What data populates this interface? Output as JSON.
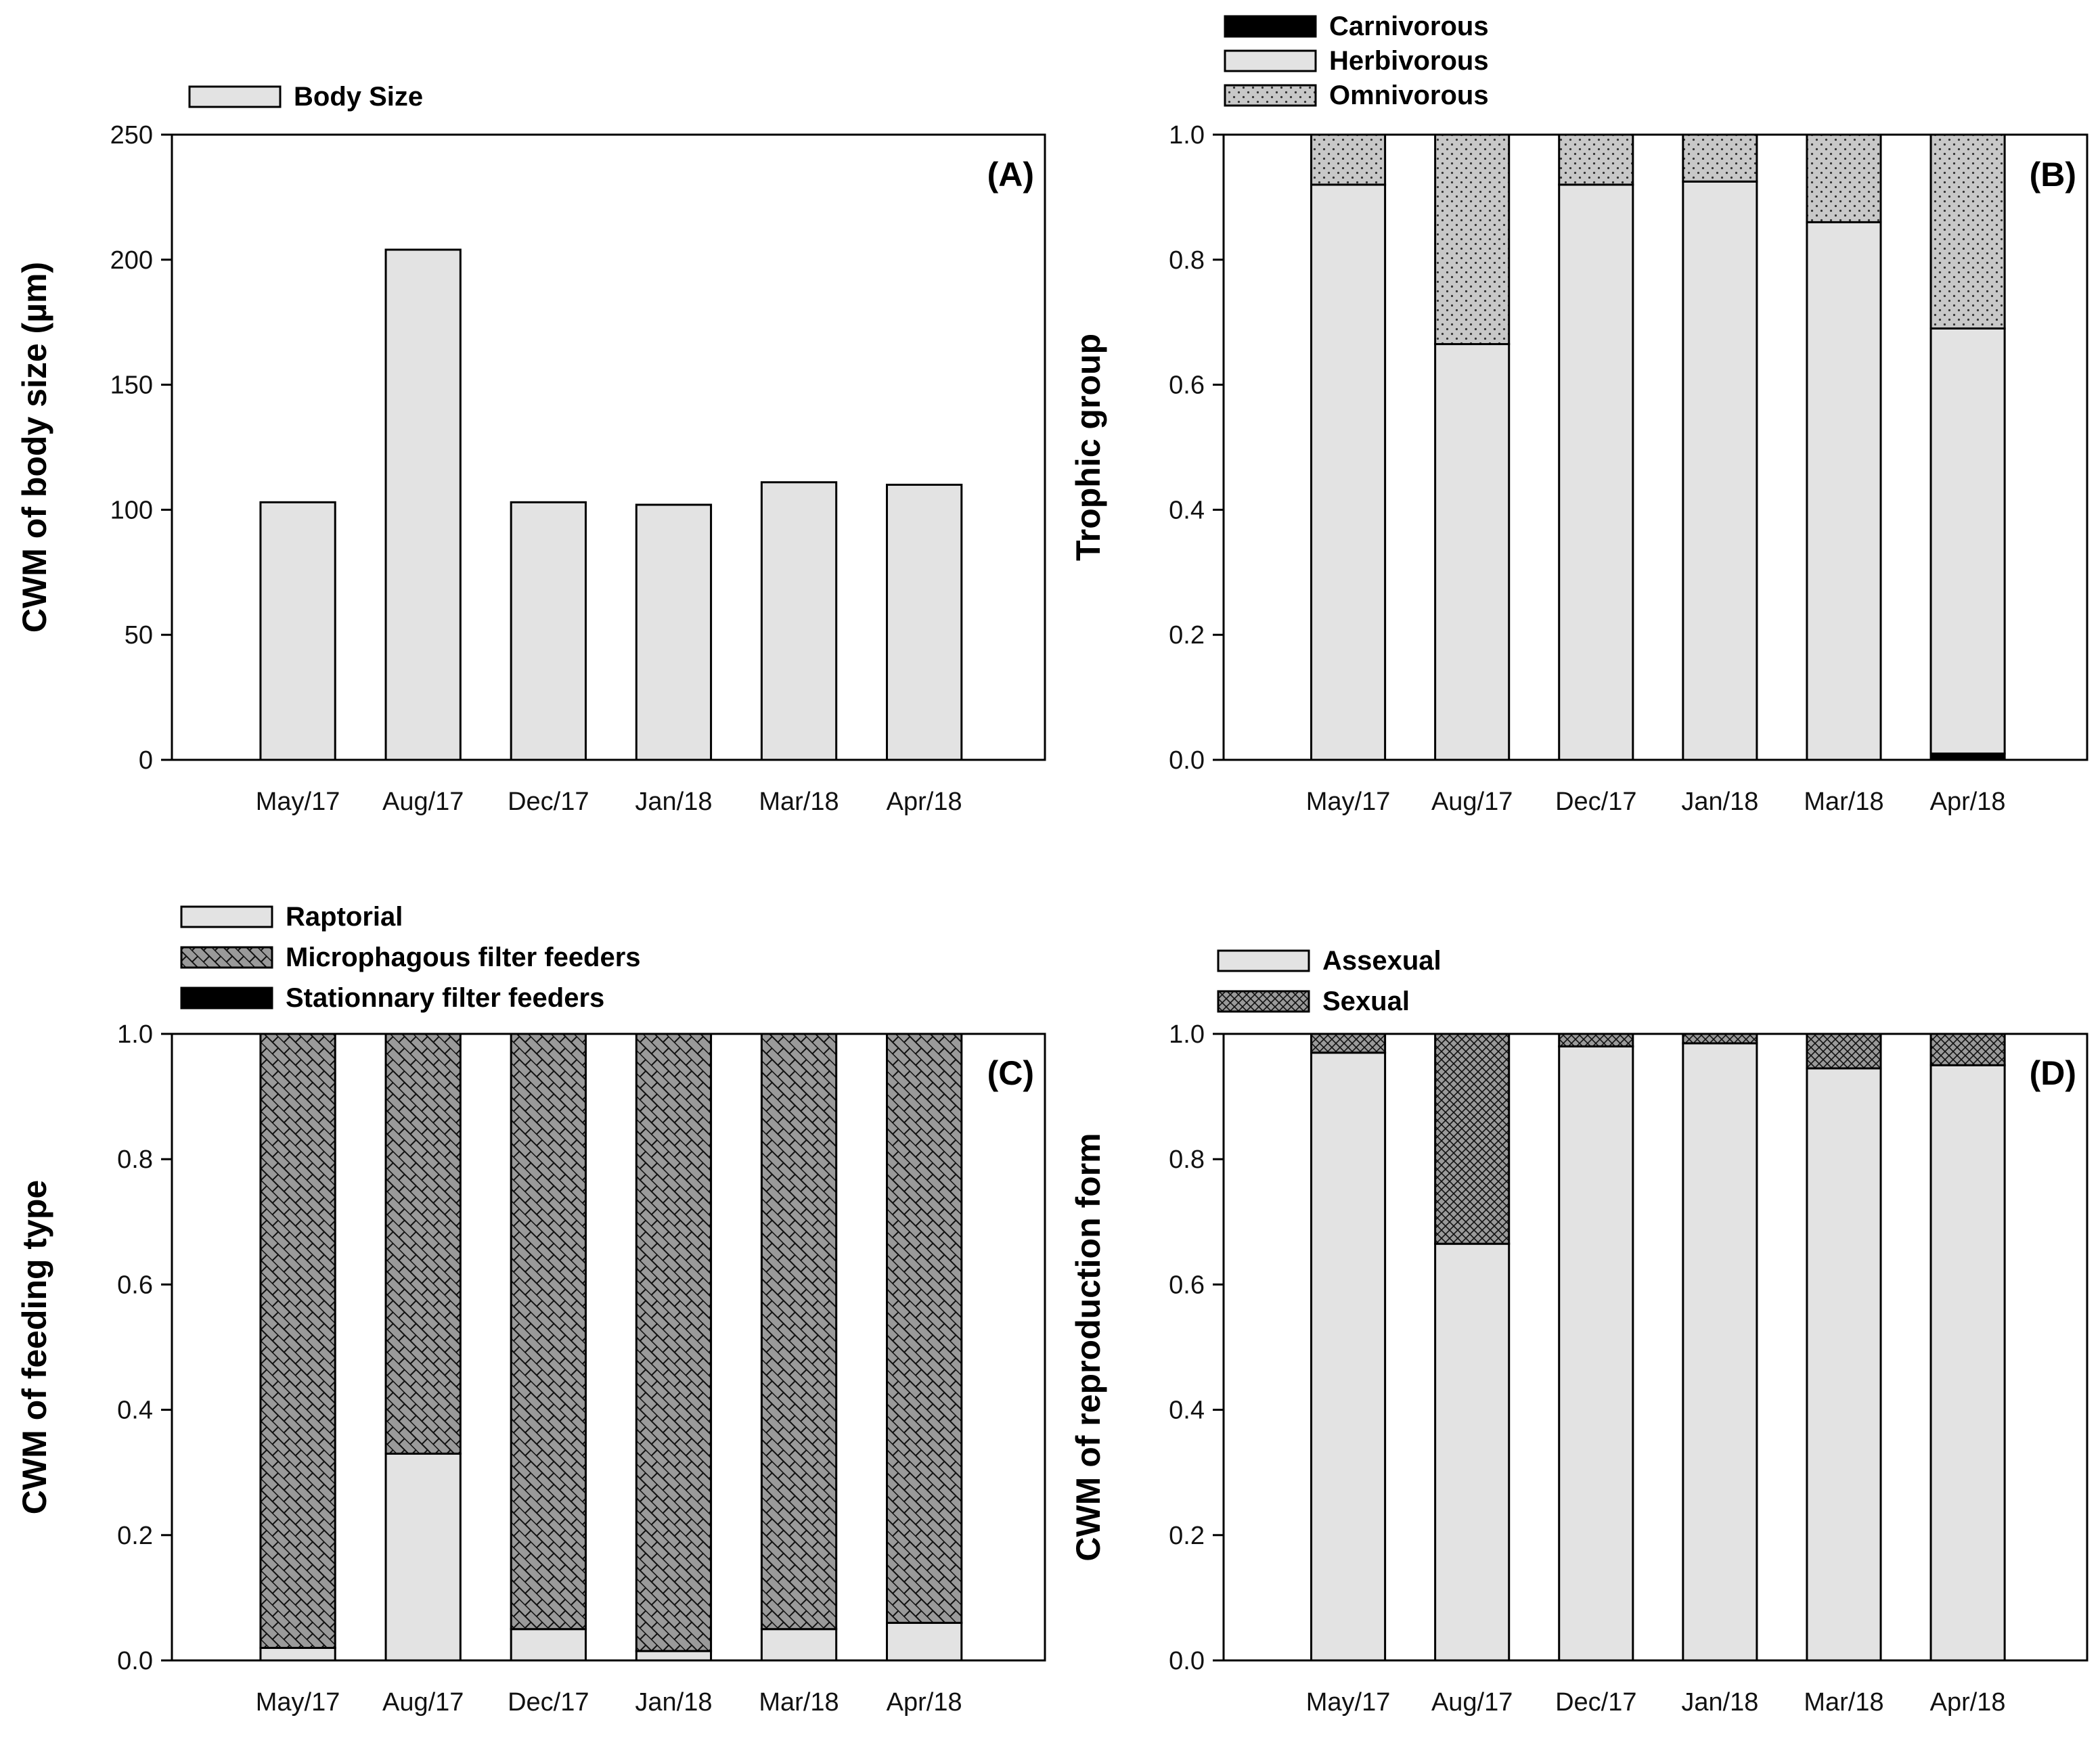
{
  "chart_data": [
    {
      "id": "A",
      "type": "bar",
      "panel_label": "(A)",
      "categories": [
        "May/17",
        "Aug/17",
        "Dec/17",
        "Jan/18",
        "Mar/18",
        "Apr/18"
      ],
      "series": [
        {
          "name": "Body Size",
          "values": [
            103,
            204,
            103,
            102,
            111,
            110
          ],
          "pattern": "plain"
        }
      ],
      "ylabel": "CWM of body size (µm)",
      "ylim": [
        0,
        250
      ],
      "yticks": [
        0,
        50,
        100,
        150,
        200,
        250
      ],
      "ytick_labels": [
        "0",
        "50",
        "100",
        "150",
        "200",
        "250"
      ]
    },
    {
      "id": "B",
      "type": "bar",
      "stacked": true,
      "panel_label": "(B)",
      "categories": [
        "May/17",
        "Aug/17",
        "Dec/17",
        "Jan/18",
        "Mar/18",
        "Apr/18"
      ],
      "series": [
        {
          "name": "Carnivorous",
          "values": [
            0,
            0,
            0,
            0,
            0,
            0.01
          ],
          "pattern": "black"
        },
        {
          "name": "Herbivorous",
          "values": [
            0.92,
            0.665,
            0.92,
            0.925,
            0.86,
            0.68
          ],
          "pattern": "plain"
        },
        {
          "name": "Omnivorous",
          "values": [
            0.08,
            0.335,
            0.08,
            0.075,
            0.14,
            0.31
          ],
          "pattern": "dots"
        }
      ],
      "ylabel": "Trophic group",
      "ylim": [
        0,
        1
      ],
      "yticks": [
        0,
        0.2,
        0.4,
        0.6,
        0.8,
        1.0
      ],
      "ytick_labels": [
        "0.0",
        "0.2",
        "0.4",
        "0.6",
        "0.8",
        "1.0"
      ]
    },
    {
      "id": "C",
      "type": "bar",
      "stacked": true,
      "panel_label": "(C)",
      "categories": [
        "May/17",
        "Aug/17",
        "Dec/17",
        "Jan/18",
        "Mar/18",
        "Apr/18"
      ],
      "series": [
        {
          "name": "Raptorial",
          "values": [
            0.02,
            0.33,
            0.05,
            0.015,
            0.05,
            0.06
          ],
          "pattern": "plain"
        },
        {
          "name": "Microphagous filter feeders",
          "values": [
            0.98,
            0.67,
            0.95,
            0.985,
            0.95,
            0.94
          ],
          "pattern": "bricks"
        },
        {
          "name": "Stationnary filter feeders",
          "values": [
            0,
            0,
            0,
            0,
            0,
            0
          ],
          "pattern": "black"
        }
      ],
      "ylabel": "CWM of feeding type",
      "ylim": [
        0,
        1
      ],
      "yticks": [
        0,
        0.2,
        0.4,
        0.6,
        0.8,
        1.0
      ],
      "ytick_labels": [
        "0.0",
        "0.2",
        "0.4",
        "0.6",
        "0.8",
        "1.0"
      ]
    },
    {
      "id": "D",
      "type": "bar",
      "stacked": true,
      "panel_label": "(D)",
      "categories": [
        "May/17",
        "Aug/17",
        "Dec/17",
        "Jan/18",
        "Mar/18",
        "Apr/18"
      ],
      "series": [
        {
          "name": "Assexual",
          "values": [
            0.97,
            0.665,
            0.98,
            0.985,
            0.945,
            0.95
          ],
          "pattern": "plain"
        },
        {
          "name": "Sexual",
          "values": [
            0.03,
            0.335,
            0.02,
            0.015,
            0.055,
            0.05
          ],
          "pattern": "crosshatch"
        }
      ],
      "ylabel": "CWM of reproduction form",
      "ylim": [
        0,
        1
      ],
      "yticks": [
        0,
        0.2,
        0.4,
        0.6,
        0.8,
        1.0
      ],
      "ytick_labels": [
        "0.0",
        "0.2",
        "0.4",
        "0.6",
        "0.8",
        "1.0"
      ]
    }
  ],
  "colors": {
    "bar_fill": "#e3e3e3",
    "pattern_bg": "#9a9a9a",
    "dots_bg": "#c8c8c8",
    "stroke": "#000000"
  }
}
